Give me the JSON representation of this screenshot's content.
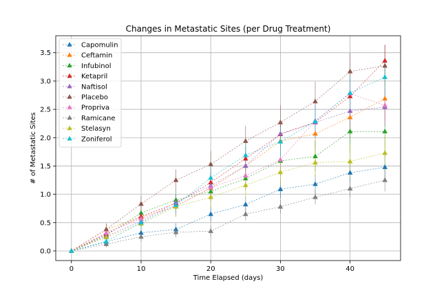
{
  "chart_data": {
    "type": "line",
    "title": "Changes in Metastatic Sites (per Drug Treatment)",
    "xlabel": "Time Elapsed (days)",
    "ylabel": "# of Metastatic Sites",
    "xlim": [
      -2.25,
      47.25
    ],
    "ylim": [
      -0.17,
      3.8
    ],
    "x_ticks": [
      0,
      10,
      20,
      30,
      40
    ],
    "y_ticks": [
      0.0,
      0.5,
      1.0,
      1.5,
      2.0,
      2.5,
      3.0,
      3.5
    ],
    "grid": true,
    "legend_position": "upper left",
    "x": [
      0,
      5,
      10,
      15,
      20,
      25,
      30,
      35,
      40,
      45
    ],
    "series": [
      {
        "name": "Capomulin",
        "color": "#1f77b4",
        "values": [
          0.0,
          0.16,
          0.32,
          0.38,
          0.65,
          0.82,
          1.09,
          1.18,
          1.38,
          1.48
        ],
        "err": [
          0.0,
          0.07,
          0.1,
          0.11,
          0.13,
          0.14,
          0.16,
          0.18,
          0.17,
          0.2
        ]
      },
      {
        "name": "Ceftamin",
        "color": "#ff7f0e",
        "values": [
          0.0,
          0.38,
          0.6,
          0.79,
          1.11,
          1.5,
          1.94,
          2.07,
          2.36,
          2.69
        ],
        "err": [
          0.0,
          0.11,
          0.15,
          0.18,
          0.21,
          0.24,
          0.27,
          0.29,
          0.3,
          0.36
        ]
      },
      {
        "name": "Infubinol",
        "color": "#2ca02c",
        "values": [
          0.0,
          0.28,
          0.67,
          0.9,
          1.05,
          1.28,
          1.59,
          1.67,
          2.11,
          2.11
        ],
        "err": [
          0.0,
          0.1,
          0.14,
          0.17,
          0.19,
          0.21,
          0.26,
          0.28,
          0.38,
          0.45
        ]
      },
      {
        "name": "Ketapril",
        "color": "#d62728",
        "values": [
          0.0,
          0.3,
          0.61,
          0.84,
          1.21,
          1.63,
          2.06,
          2.27,
          2.73,
          3.36
        ],
        "err": [
          0.0,
          0.1,
          0.13,
          0.16,
          0.19,
          0.21,
          0.25,
          0.27,
          0.31,
          0.28
        ]
      },
      {
        "name": "Naftisol",
        "color": "#9467bd",
        "values": [
          0.0,
          0.26,
          0.52,
          0.86,
          1.15,
          1.5,
          2.07,
          2.27,
          2.47,
          2.54
        ],
        "err": [
          0.0,
          0.09,
          0.12,
          0.15,
          0.18,
          0.2,
          0.24,
          0.28,
          0.29,
          0.34
        ]
      },
      {
        "name": "Placebo",
        "color": "#8c564b",
        "values": [
          0.0,
          0.38,
          0.83,
          1.25,
          1.53,
          1.94,
          2.27,
          2.64,
          3.17,
          3.27
        ],
        "err": [
          0.0,
          0.1,
          0.14,
          0.19,
          0.23,
          0.27,
          0.3,
          0.35,
          0.32,
          0.37
        ]
      },
      {
        "name": "Propriva",
        "color": "#e377c2",
        "values": [
          0.0,
          0.32,
          0.57,
          0.79,
          1.12,
          1.33,
          1.61,
          2.3,
          2.78,
          2.57
        ],
        "err": [
          0.0,
          0.11,
          0.14,
          0.17,
          0.21,
          0.23,
          0.24,
          0.28,
          0.3,
          0.33
        ]
      },
      {
        "name": "Ramicane",
        "color": "#7f7f7f",
        "values": [
          0.0,
          0.12,
          0.25,
          0.33,
          0.35,
          0.65,
          0.78,
          0.95,
          1.1,
          1.25
        ],
        "err": [
          0.0,
          0.06,
          0.08,
          0.09,
          0.1,
          0.11,
          0.12,
          0.13,
          0.16,
          0.2
        ]
      },
      {
        "name": "Stelasyn",
        "color": "#bcbd22",
        "values": [
          0.0,
          0.24,
          0.48,
          0.78,
          0.95,
          1.16,
          1.39,
          1.56,
          1.58,
          1.73
        ],
        "err": [
          0.0,
          0.1,
          0.14,
          0.18,
          0.2,
          0.22,
          0.24,
          0.26,
          0.29,
          0.31
        ]
      },
      {
        "name": "Zoniferol",
        "color": "#17becf",
        "values": [
          0.0,
          0.17,
          0.5,
          0.81,
          1.29,
          1.69,
          1.93,
          2.29,
          2.79,
          3.07
        ],
        "err": [
          0.0,
          0.08,
          0.12,
          0.16,
          0.2,
          0.23,
          0.26,
          0.29,
          0.3,
          0.33
        ]
      }
    ]
  }
}
